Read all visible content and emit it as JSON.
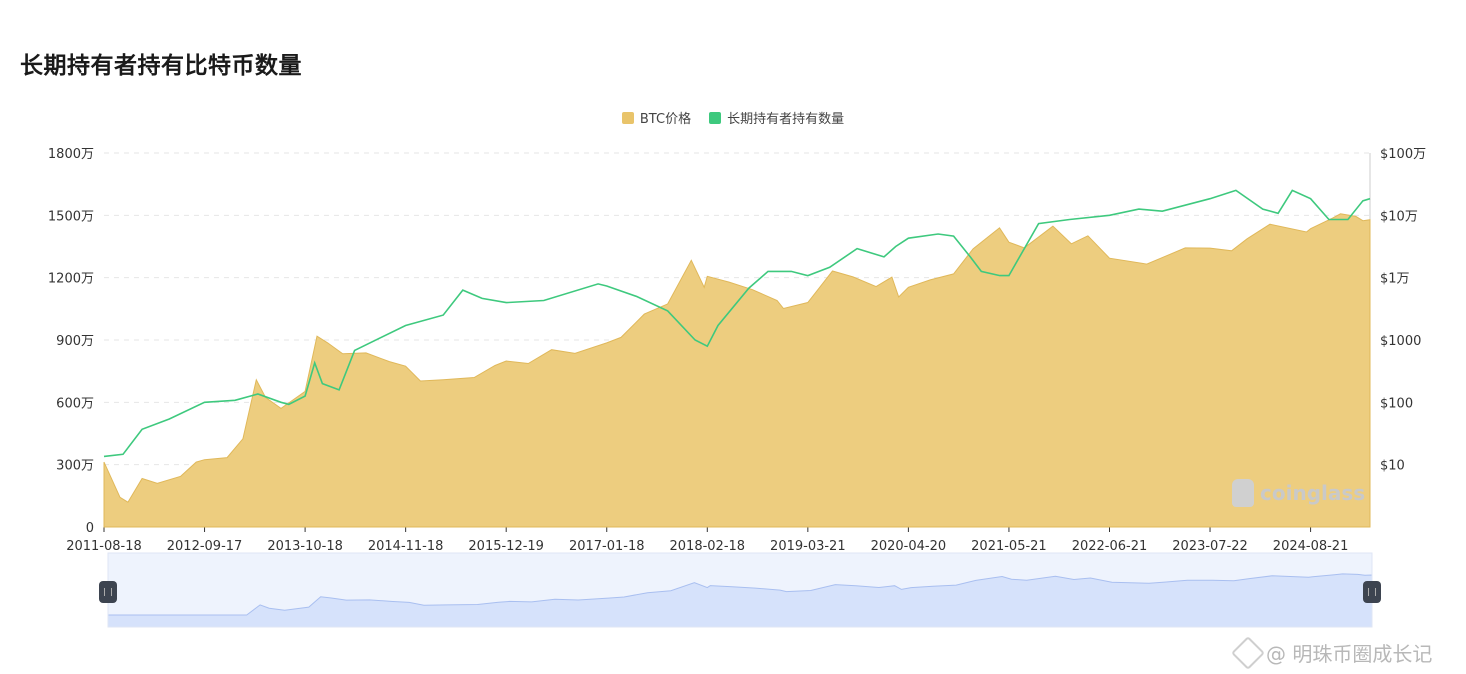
{
  "title": "长期持有者持有比特币数量",
  "legend": [
    {
      "label": "BTC价格",
      "color": "#e9c46a"
    },
    {
      "label": "长期持有者持有数量",
      "color": "#3ec97e"
    }
  ],
  "watermark": "coinglass",
  "footer": "@ 明珠币圈成长记",
  "chart_data": {
    "type": "area",
    "x": [
      "2011-08-18",
      "2012-09-17",
      "2013-10-18",
      "2014-11-18",
      "2015-12-19",
      "2017-01-18",
      "2018-02-18",
      "2019-03-21",
      "2020-04-20",
      "2021-05-21",
      "2022-06-21",
      "2023-07-22",
      "2024-08-21"
    ],
    "x_range": [
      "2011-08-18",
      "2025-04-12"
    ],
    "yleft": {
      "ticks": [
        "0",
        "300万",
        "600万",
        "900万",
        "1200万",
        "1500万",
        "1800万"
      ],
      "ylim": [
        0,
        18000000
      ]
    },
    "yright": {
      "scale": "log",
      "ticks": [
        "$10",
        "$100",
        "$1000",
        "$1万",
        "$10万",
        "$100万"
      ],
      "ylim": [
        1,
        1000000
      ]
    },
    "series": [
      {
        "name": "BTC价格",
        "axis": "right",
        "points": [
          [
            "2011-08-18",
            11
          ],
          [
            "2011-10-20",
            3
          ],
          [
            "2011-11-20",
            2.5
          ],
          [
            "2012-01-15",
            6
          ],
          [
            "2012-03-15",
            5
          ],
          [
            "2012-06-15",
            6.5
          ],
          [
            "2012-08-15",
            11
          ],
          [
            "2012-09-17",
            12
          ],
          [
            "2012-12-15",
            13
          ],
          [
            "2013-02-15",
            26
          ],
          [
            "2013-04-09",
            230
          ],
          [
            "2013-05-15",
            120
          ],
          [
            "2013-07-15",
            80
          ],
          [
            "2013-10-18",
            150
          ],
          [
            "2013-12-04",
            1150
          ],
          [
            "2014-01-15",
            900
          ],
          [
            "2014-03-15",
            600
          ],
          [
            "2014-06-15",
            620
          ],
          [
            "2014-09-15",
            450
          ],
          [
            "2014-11-18",
            380
          ],
          [
            "2015-01-15",
            220
          ],
          [
            "2015-04-15",
            230
          ],
          [
            "2015-08-15",
            250
          ],
          [
            "2015-11-05",
            390
          ],
          [
            "2015-12-19",
            460
          ],
          [
            "2016-03-15",
            420
          ],
          [
            "2016-06-15",
            700
          ],
          [
            "2016-09-15",
            610
          ],
          [
            "2017-01-18",
            900
          ],
          [
            "2017-03-15",
            1100
          ],
          [
            "2017-06-15",
            2600
          ],
          [
            "2017-09-15",
            3800
          ],
          [
            "2017-12-17",
            19000
          ],
          [
            "2018-02-06",
            7000
          ],
          [
            "2018-02-18",
            10500
          ],
          [
            "2018-05-15",
            8500
          ],
          [
            "2018-08-15",
            6400
          ],
          [
            "2018-11-20",
            4300
          ],
          [
            "2018-12-15",
            3200
          ],
          [
            "2019-03-21",
            4000
          ],
          [
            "2019-06-26",
            12800
          ],
          [
            "2019-09-15",
            10300
          ],
          [
            "2019-12-15",
            7200
          ],
          [
            "2020-02-15",
            10200
          ],
          [
            "2020-03-13",
            4900
          ],
          [
            "2020-04-20",
            7000
          ],
          [
            "2020-07-15",
            9200
          ],
          [
            "2020-10-15",
            11500
          ],
          [
            "2020-12-31",
            29000
          ],
          [
            "2021-04-14",
            63000
          ],
          [
            "2021-05-21",
            37000
          ],
          [
            "2021-07-20",
            30000
          ],
          [
            "2021-11-10",
            67000
          ],
          [
            "2022-01-22",
            35000
          ],
          [
            "2022-03-28",
            47000
          ],
          [
            "2022-06-21",
            20500
          ],
          [
            "2022-11-15",
            16500
          ],
          [
            "2023-01-15",
            21000
          ],
          [
            "2023-04-15",
            30000
          ],
          [
            "2023-07-22",
            29800
          ],
          [
            "2023-10-15",
            27000
          ],
          [
            "2023-12-15",
            42000
          ],
          [
            "2024-03-14",
            72000
          ],
          [
            "2024-08-05",
            54000
          ],
          [
            "2024-08-21",
            61000
          ],
          [
            "2024-11-15",
            90000
          ],
          [
            "2024-12-17",
            106000
          ],
          [
            "2025-02-15",
            96000
          ],
          [
            "2025-03-15",
            82000
          ],
          [
            "2025-04-12",
            85000
          ]
        ]
      },
      {
        "name": "长期持有者持有数量",
        "axis": "left",
        "points": [
          [
            "2011-08-18",
            3400000
          ],
          [
            "2011-11-01",
            3500000
          ],
          [
            "2012-01-15",
            4700000
          ],
          [
            "2012-05-01",
            5200000
          ],
          [
            "2012-09-17",
            6000000
          ],
          [
            "2013-01-15",
            6100000
          ],
          [
            "2013-04-15",
            6400000
          ],
          [
            "2013-07-15",
            6000000
          ],
          [
            "2013-08-15",
            5900000
          ],
          [
            "2013-10-18",
            6300000
          ],
          [
            "2013-11-25",
            7900000
          ],
          [
            "2013-12-25",
            6900000
          ],
          [
            "2014-03-01",
            6600000
          ],
          [
            "2014-05-01",
            8500000
          ],
          [
            "2014-11-18",
            9700000
          ],
          [
            "2015-04-15",
            10200000
          ],
          [
            "2015-07-01",
            11400000
          ],
          [
            "2015-09-15",
            11000000
          ],
          [
            "2015-12-19",
            10800000
          ],
          [
            "2016-05-15",
            10900000
          ],
          [
            "2016-12-15",
            11700000
          ],
          [
            "2017-01-18",
            11600000
          ],
          [
            "2017-05-15",
            11100000
          ],
          [
            "2017-09-15",
            10400000
          ],
          [
            "2018-01-01",
            9000000
          ],
          [
            "2018-02-18",
            8700000
          ],
          [
            "2018-04-01",
            9700000
          ],
          [
            "2018-08-01",
            11500000
          ],
          [
            "2018-10-15",
            12300000
          ],
          [
            "2019-01-15",
            12300000
          ],
          [
            "2019-03-21",
            12100000
          ],
          [
            "2019-06-15",
            12500000
          ],
          [
            "2019-10-01",
            13400000
          ],
          [
            "2020-01-15",
            13000000
          ],
          [
            "2020-03-01",
            13500000
          ],
          [
            "2020-04-20",
            13900000
          ],
          [
            "2020-08-15",
            14100000
          ],
          [
            "2020-10-15",
            14000000
          ],
          [
            "2020-12-20",
            13000000
          ],
          [
            "2021-02-01",
            12300000
          ],
          [
            "2021-04-15",
            12100000
          ],
          [
            "2021-05-21",
            12100000
          ],
          [
            "2021-09-15",
            14600000
          ],
          [
            "2022-01-15",
            14800000
          ],
          [
            "2022-06-21",
            15000000
          ],
          [
            "2022-10-15",
            15300000
          ],
          [
            "2023-01-15",
            15200000
          ],
          [
            "2023-07-22",
            15800000
          ],
          [
            "2023-11-01",
            16200000
          ],
          [
            "2024-02-15",
            15300000
          ],
          [
            "2024-04-15",
            15100000
          ],
          [
            "2024-06-10",
            16200000
          ],
          [
            "2024-08-21",
            15800000
          ],
          [
            "2024-11-01",
            14800000
          ],
          [
            "2025-01-15",
            14800000
          ],
          [
            "2025-03-15",
            15700000
          ],
          [
            "2025-04-12",
            15800000
          ]
        ]
      }
    ],
    "grid": true,
    "legend_position": "top-center",
    "has_zoom_slider": true
  }
}
